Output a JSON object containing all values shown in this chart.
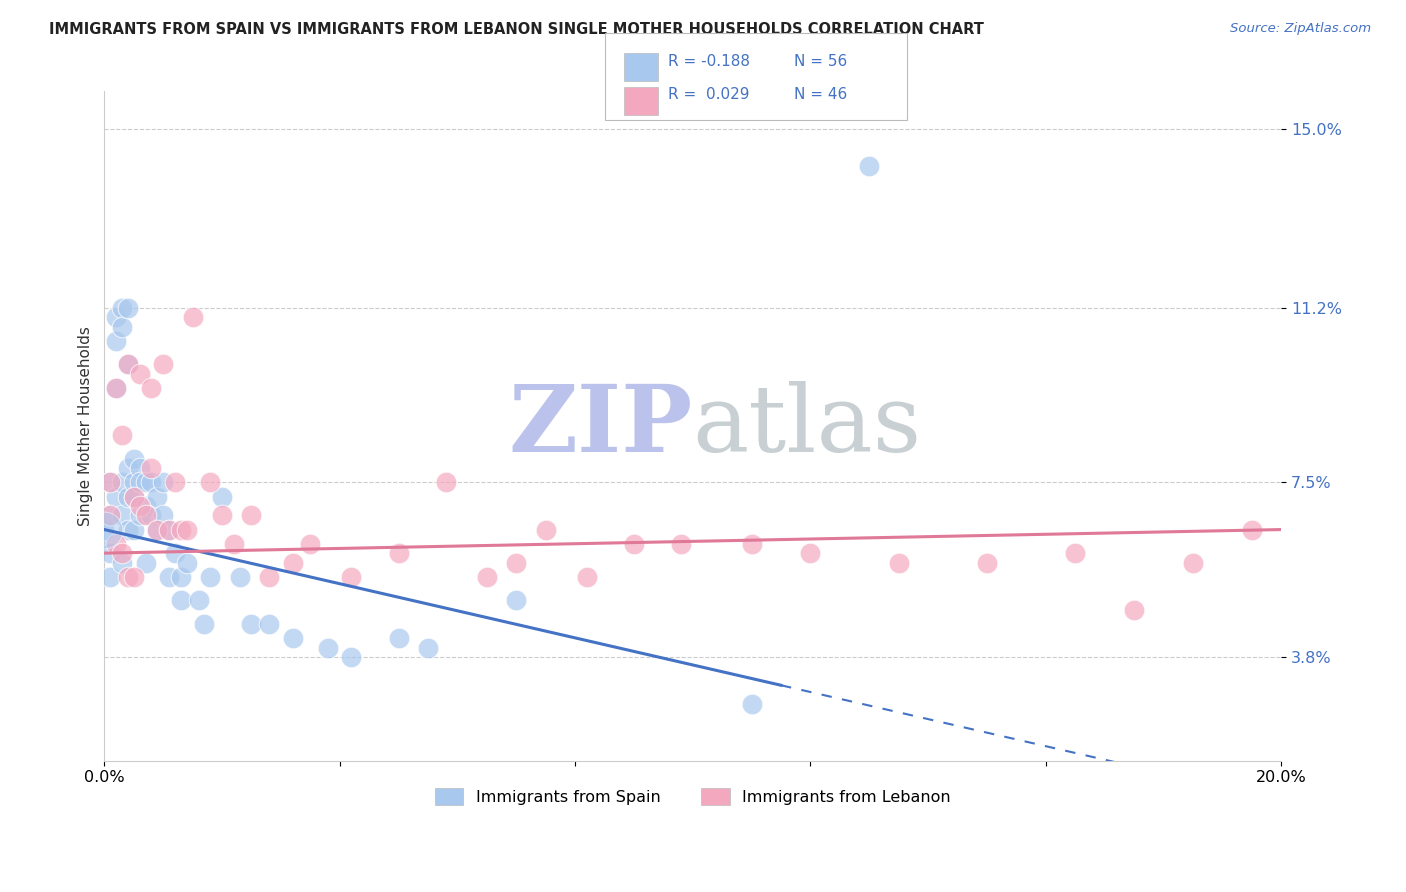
{
  "title": "IMMIGRANTS FROM SPAIN VS IMMIGRANTS FROM LEBANON SINGLE MOTHER HOUSEHOLDS CORRELATION CHART",
  "source": "Source: ZipAtlas.com",
  "ylabel": "Single Mother Households",
  "x_min": 0.0,
  "x_max": 0.2,
  "y_min": 0.016,
  "y_max": 0.158,
  "y_ticks": [
    0.038,
    0.075,
    0.112,
    0.15
  ],
  "y_tick_labels": [
    "3.8%",
    "7.5%",
    "11.2%",
    "15.0%"
  ],
  "x_ticks": [
    0.0,
    0.04,
    0.08,
    0.12,
    0.16,
    0.2
  ],
  "x_tick_labels": [
    "0.0%",
    "",
    "",
    "",
    "",
    "20.0%"
  ],
  "legend_spain": "Immigrants from Spain",
  "legend_lebanon": "Immigrants from Lebanon",
  "r_spain": -0.188,
  "n_spain": 56,
  "r_lebanon": 0.029,
  "n_lebanon": 46,
  "color_spain": "#A8C8EE",
  "color_lebanon": "#F4A8C0",
  "color_line_spain": "#4472C4",
  "color_line_lebanon": "#E07898",
  "watermark": "ZIPatlas",
  "watermark_color_zip": "#C8CCE8",
  "watermark_color_atlas": "#C8CCCC",
  "spain_x": [
    0.0,
    0.001,
    0.001,
    0.001,
    0.001,
    0.002,
    0.002,
    0.002,
    0.002,
    0.003,
    0.003,
    0.003,
    0.003,
    0.003,
    0.004,
    0.004,
    0.004,
    0.004,
    0.004,
    0.005,
    0.005,
    0.005,
    0.005,
    0.006,
    0.006,
    0.006,
    0.007,
    0.007,
    0.007,
    0.008,
    0.008,
    0.009,
    0.009,
    0.01,
    0.01,
    0.011,
    0.011,
    0.012,
    0.013,
    0.013,
    0.014,
    0.016,
    0.017,
    0.018,
    0.02,
    0.023,
    0.025,
    0.028,
    0.032,
    0.038,
    0.042,
    0.05,
    0.055,
    0.07,
    0.11,
    0.13
  ],
  "spain_y": [
    0.065,
    0.075,
    0.068,
    0.06,
    0.055,
    0.11,
    0.105,
    0.095,
    0.072,
    0.112,
    0.108,
    0.075,
    0.068,
    0.058,
    0.112,
    0.1,
    0.078,
    0.072,
    0.065,
    0.08,
    0.075,
    0.072,
    0.065,
    0.078,
    0.075,
    0.068,
    0.075,
    0.07,
    0.058,
    0.075,
    0.068,
    0.072,
    0.065,
    0.075,
    0.068,
    0.065,
    0.055,
    0.06,
    0.055,
    0.05,
    0.058,
    0.05,
    0.045,
    0.055,
    0.072,
    0.055,
    0.045,
    0.045,
    0.042,
    0.04,
    0.038,
    0.042,
    0.04,
    0.05,
    0.028,
    0.142
  ],
  "lebanon_x": [
    0.001,
    0.001,
    0.002,
    0.002,
    0.003,
    0.003,
    0.004,
    0.004,
    0.005,
    0.005,
    0.006,
    0.006,
    0.007,
    0.008,
    0.008,
    0.009,
    0.01,
    0.011,
    0.012,
    0.013,
    0.014,
    0.015,
    0.018,
    0.02,
    0.022,
    0.025,
    0.028,
    0.032,
    0.035,
    0.042,
    0.05,
    0.058,
    0.065,
    0.07,
    0.075,
    0.082,
    0.09,
    0.098,
    0.11,
    0.12,
    0.135,
    0.15,
    0.165,
    0.175,
    0.185,
    0.195
  ],
  "lebanon_y": [
    0.075,
    0.068,
    0.095,
    0.062,
    0.085,
    0.06,
    0.055,
    0.1,
    0.072,
    0.055,
    0.098,
    0.07,
    0.068,
    0.095,
    0.078,
    0.065,
    0.1,
    0.065,
    0.075,
    0.065,
    0.065,
    0.11,
    0.075,
    0.068,
    0.062,
    0.068,
    0.055,
    0.058,
    0.062,
    0.055,
    0.06,
    0.075,
    0.055,
    0.058,
    0.065,
    0.055,
    0.062,
    0.062,
    0.062,
    0.06,
    0.058,
    0.058,
    0.06,
    0.048,
    0.058,
    0.065
  ],
  "line_spain_x_solid_end": 0.115,
  "line_spain_x_dash_end": 0.2
}
